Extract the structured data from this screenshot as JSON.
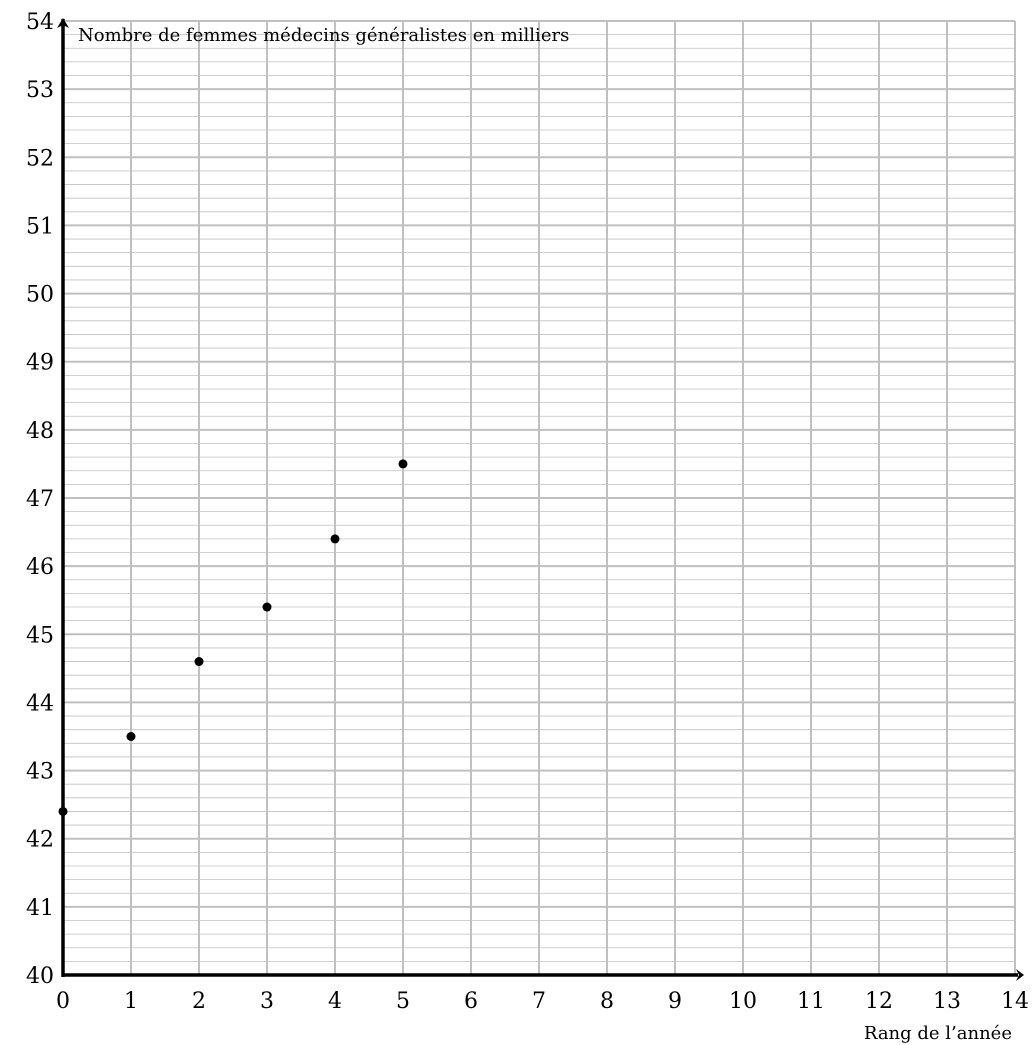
{
  "chart_data": {
    "type": "scatter",
    "title": "",
    "xlabel": "Rang de l’année",
    "ylabel": "Nombre de femmes médecins généralistes en milliers",
    "xlim": [
      0,
      14
    ],
    "ylim": [
      40,
      54
    ],
    "x_ticks": [
      "0",
      "1",
      "2",
      "3",
      "4",
      "5",
      "6",
      "7",
      "8",
      "9",
      "10",
      "11",
      "12",
      "13",
      "14"
    ],
    "y_ticks": [
      "40",
      "41",
      "42",
      "43",
      "44",
      "45",
      "46",
      "47",
      "48",
      "49",
      "50",
      "51",
      "52",
      "53",
      "54"
    ],
    "x_major_step": 1,
    "y_major_step": 1,
    "y_minor_step": 0.2,
    "grid": true,
    "legend": "none",
    "points": [
      {
        "x": 0,
        "y": 42.4
      },
      {
        "x": 1,
        "y": 43.5
      },
      {
        "x": 2,
        "y": 44.6
      },
      {
        "x": 3,
        "y": 45.4
      },
      {
        "x": 4,
        "y": 46.4
      },
      {
        "x": 5,
        "y": 47.5
      }
    ],
    "colors": {
      "grid": "#c0c0c0",
      "axis": "#000000",
      "points": "#000000"
    }
  }
}
